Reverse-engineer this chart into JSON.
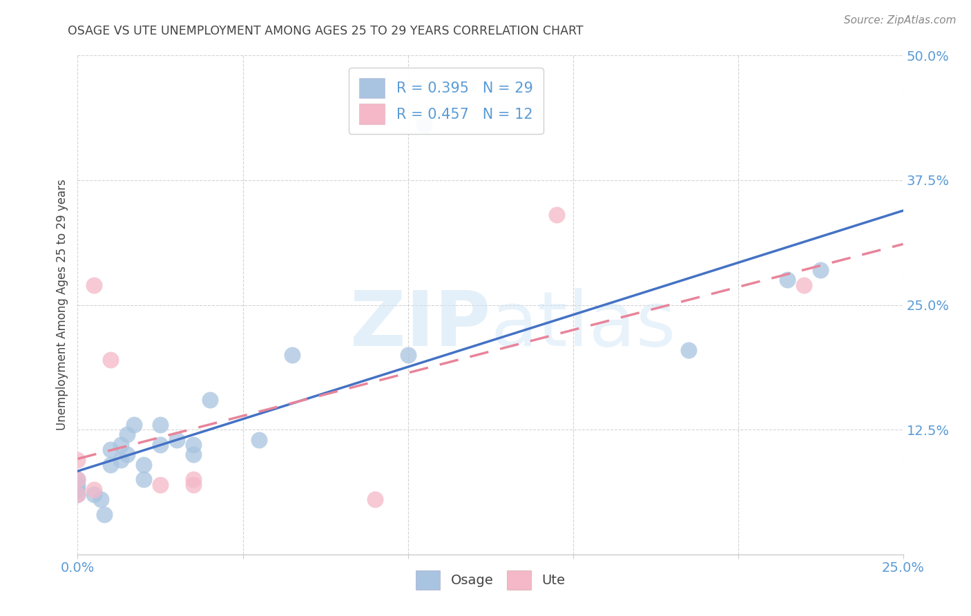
{
  "title": "OSAGE VS UTE UNEMPLOYMENT AMONG AGES 25 TO 29 YEARS CORRELATION CHART",
  "source": "Source: ZipAtlas.com",
  "ylabel": "Unemployment Among Ages 25 to 29 years",
  "xlim": [
    0.0,
    0.25
  ],
  "ylim": [
    0.0,
    0.5
  ],
  "xticks": [
    0.0,
    0.05,
    0.1,
    0.15,
    0.2,
    0.25
  ],
  "yticks": [
    0.0,
    0.125,
    0.25,
    0.375,
    0.5
  ],
  "xtick_labels": [
    "0.0%",
    "",
    "",
    "",
    "",
    "25.0%"
  ],
  "ytick_labels": [
    "",
    "12.5%",
    "25.0%",
    "37.5%",
    "50.0%"
  ],
  "osage_x": [
    0.0,
    0.0,
    0.0,
    0.0,
    0.005,
    0.007,
    0.008,
    0.01,
    0.01,
    0.013,
    0.013,
    0.015,
    0.015,
    0.017,
    0.02,
    0.02,
    0.025,
    0.025,
    0.03,
    0.035,
    0.035,
    0.04,
    0.055,
    0.065,
    0.1,
    0.105,
    0.185,
    0.215,
    0.225
  ],
  "osage_y": [
    0.06,
    0.065,
    0.07,
    0.075,
    0.06,
    0.055,
    0.04,
    0.09,
    0.105,
    0.095,
    0.11,
    0.1,
    0.12,
    0.13,
    0.075,
    0.09,
    0.11,
    0.13,
    0.115,
    0.1,
    0.11,
    0.155,
    0.115,
    0.2,
    0.2,
    0.43,
    0.205,
    0.275,
    0.285
  ],
  "ute_x": [
    0.0,
    0.0,
    0.0,
    0.005,
    0.005,
    0.01,
    0.025,
    0.035,
    0.035,
    0.09,
    0.145,
    0.22
  ],
  "ute_y": [
    0.06,
    0.075,
    0.095,
    0.065,
    0.27,
    0.195,
    0.07,
    0.075,
    0.07,
    0.055,
    0.34,
    0.27
  ],
  "osage_color": "#a8c4e0",
  "ute_color": "#f4b8c8",
  "osage_line_color": "#4472c4",
  "ute_line_color": "#e8849a",
  "legend_label_osage": "R = 0.395   N = 29",
  "legend_label_ute": "R = 0.457   N = 12",
  "watermark_zip": "ZIP",
  "watermark_atlas": "atlas",
  "background_color": "#ffffff",
  "grid_color": "#c8c8c8",
  "title_color": "#444444",
  "axis_label_color": "#444444",
  "tick_label_color": "#5b9bd5",
  "legend_text_color": "#5b9bd5",
  "source_color": "#888888"
}
